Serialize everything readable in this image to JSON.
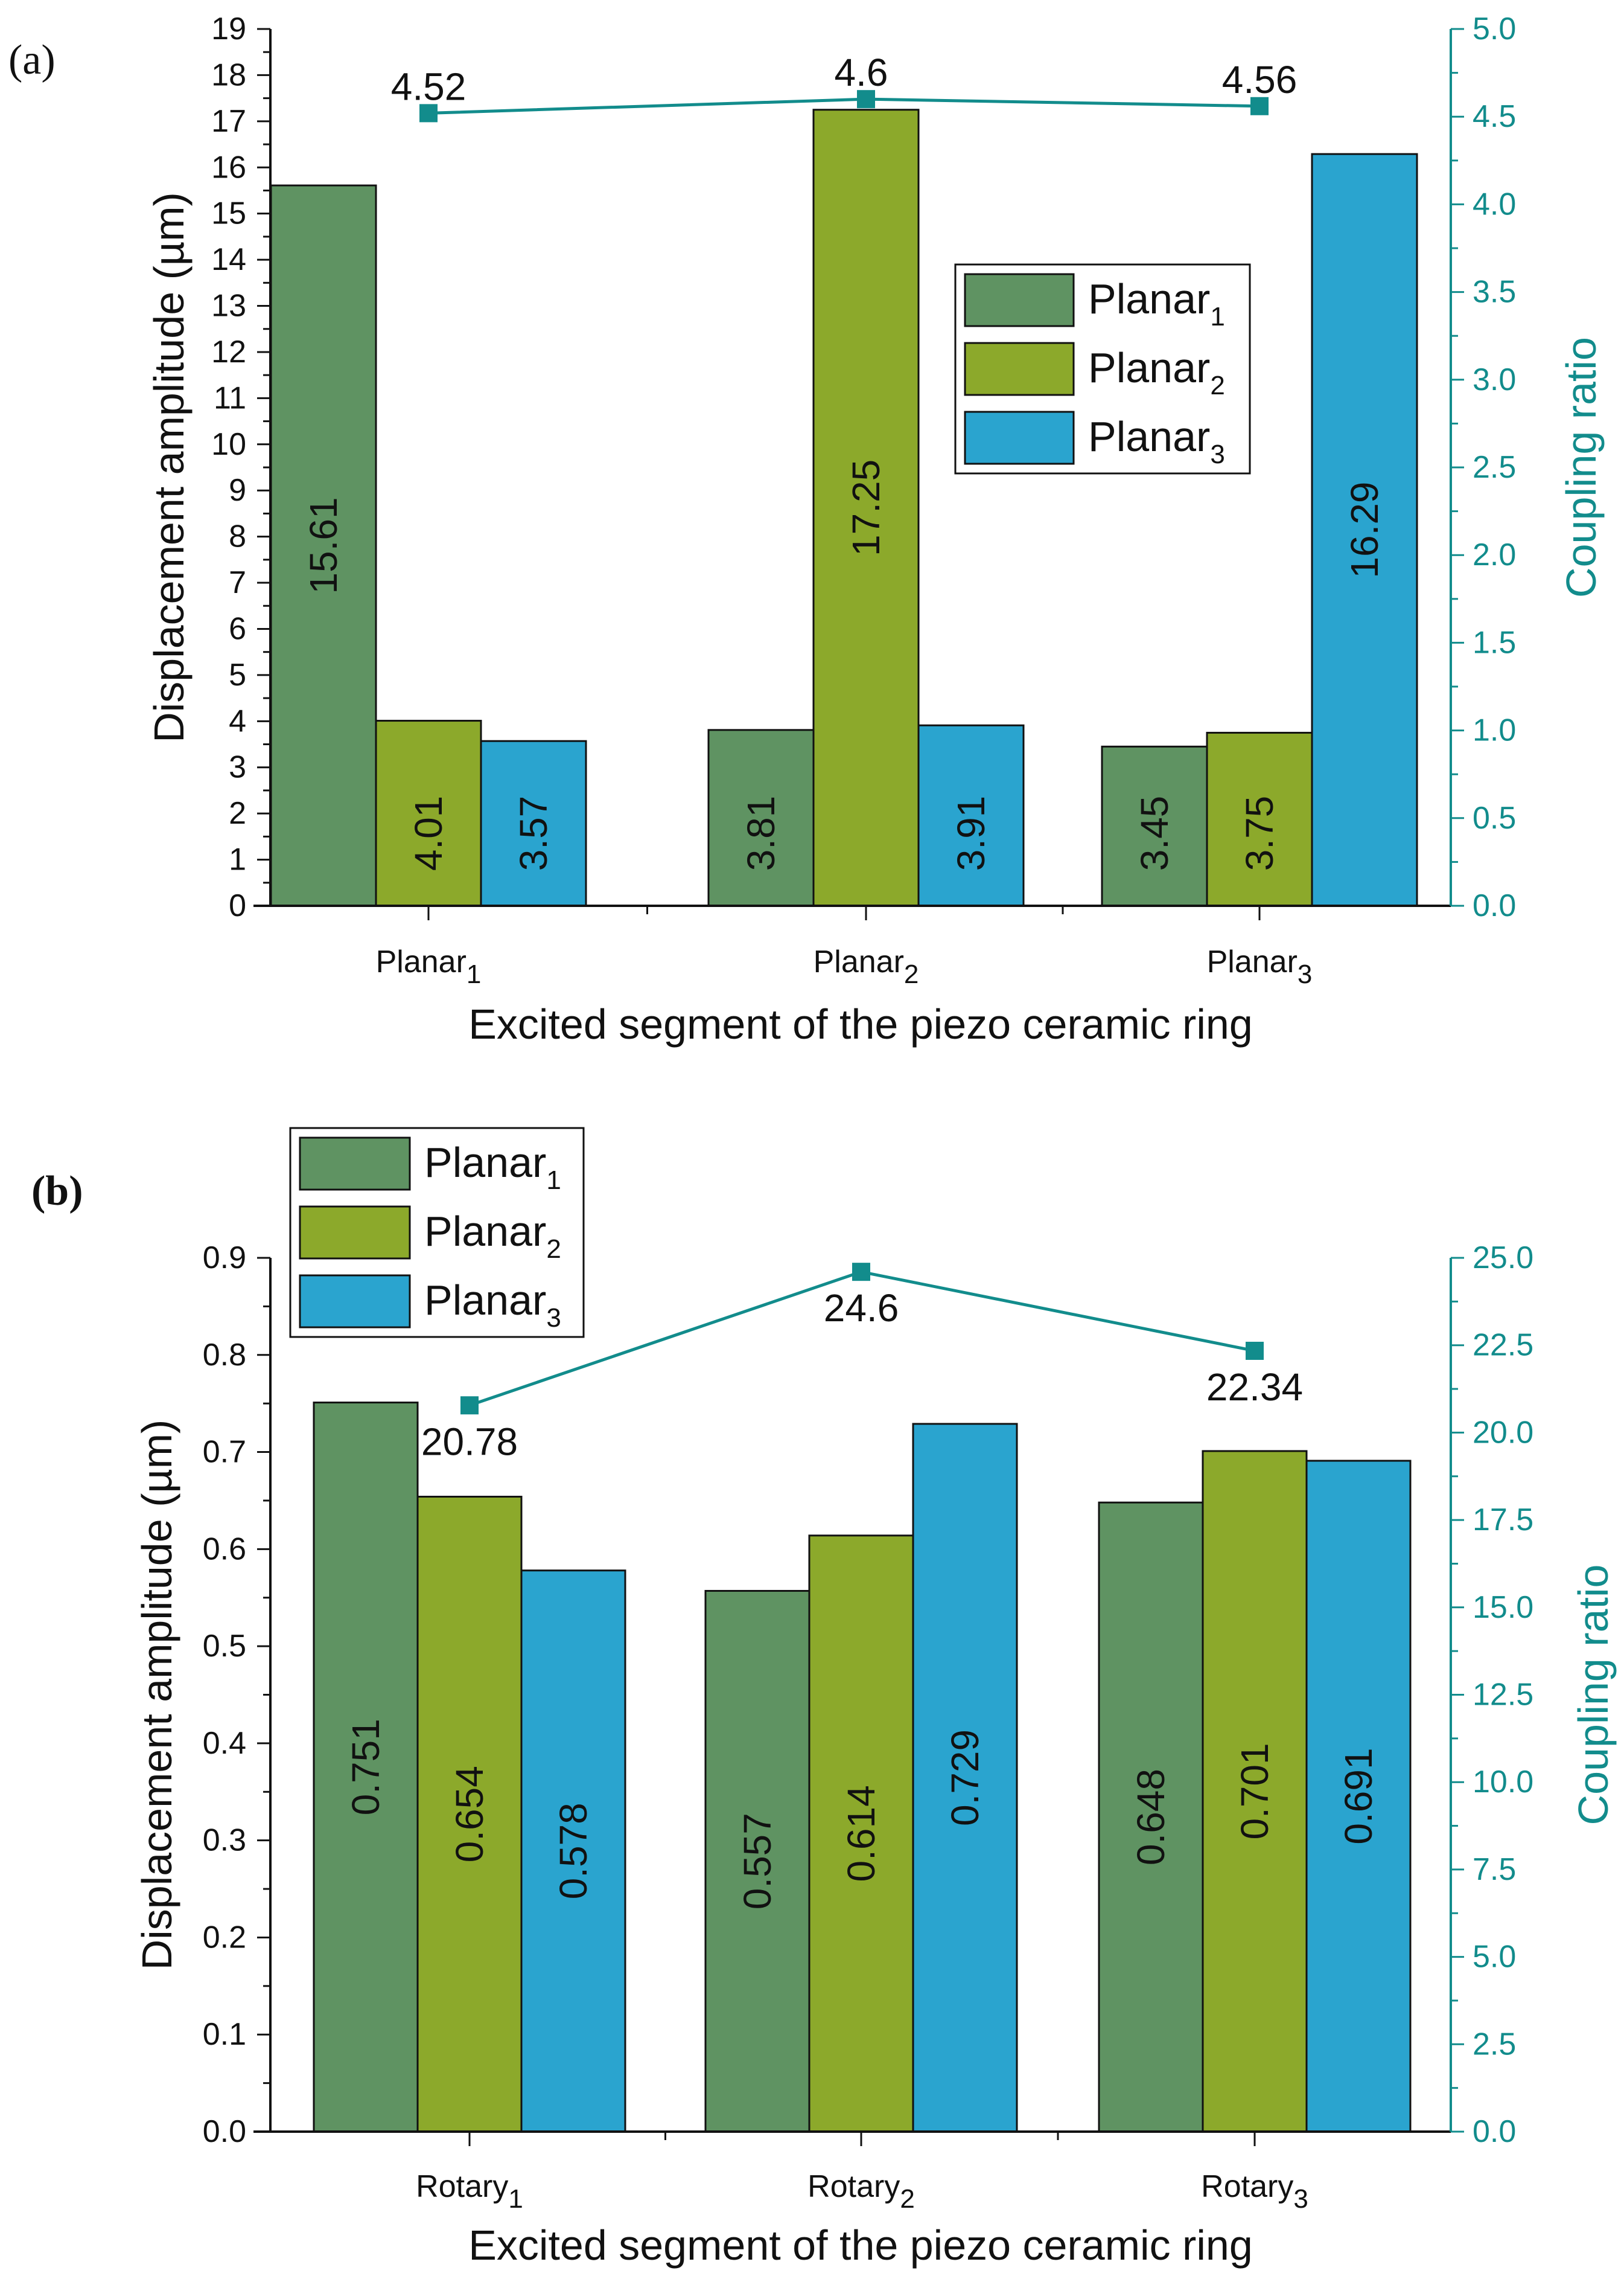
{
  "chart_data": [
    {
      "panel": "(a)",
      "type": "bar",
      "xlabel": "Excited segment of the piezo ceramic ring",
      "ylabel": "Displacement amplitude (µm)",
      "y2label": "Coupling ratio",
      "ylim": [
        0,
        19
      ],
      "yticks": [
        "0",
        "1",
        "2",
        "3",
        "4",
        "5",
        "6",
        "7",
        "8",
        "9",
        "10",
        "11",
        "12",
        "13",
        "14",
        "15",
        "16",
        "17",
        "18",
        "19"
      ],
      "y2lim": [
        0,
        5
      ],
      "y2ticks": [
        "0.0",
        "0.5",
        "1.0",
        "1.5",
        "2.0",
        "2.5",
        "3.0",
        "3.5",
        "4.0",
        "4.5",
        "5.0"
      ],
      "categories": [
        {
          "base": "Planar",
          "sub": "1"
        },
        {
          "base": "Planar",
          "sub": "2"
        },
        {
          "base": "Planar",
          "sub": "3"
        }
      ],
      "series": [
        {
          "name": "Planar",
          "sub": "1",
          "color": "#5f9362",
          "values": [
            15.61,
            3.81,
            3.45
          ],
          "labels": [
            "15.61",
            "3.81",
            "3.45"
          ]
        },
        {
          "name": "Planar",
          "sub": "2",
          "color": "#8ca92b",
          "values": [
            4.01,
            17.25,
            3.75
          ],
          "labels": [
            "4.01",
            "17.25",
            "3.75"
          ]
        },
        {
          "name": "Planar",
          "sub": "3",
          "color": "#2aa4cf",
          "values": [
            3.57,
            3.91,
            16.29
          ],
          "labels": [
            "3.57",
            "3.91",
            "16.29"
          ]
        }
      ],
      "line": {
        "name": "Coupling ratio",
        "color": "#128c8c",
        "values": [
          4.52,
          4.6,
          4.56
        ],
        "labels": [
          "4.52",
          "4.6",
          "4.56"
        ]
      },
      "legend_position": "center-right"
    },
    {
      "panel": "(b)",
      "type": "bar",
      "xlabel": "Excited segment of the piezo ceramic ring",
      "ylabel": "Displacement amplitude (µm)",
      "y2label": "Coupling ratio",
      "ylim": [
        0,
        0.9
      ],
      "yticks": [
        "0.0",
        "0.1",
        "0.2",
        "0.3",
        "0.4",
        "0.5",
        "0.6",
        "0.7",
        "0.8",
        "0.9"
      ],
      "y2lim": [
        0,
        25
      ],
      "y2ticks": [
        "0.0",
        "2.5",
        "5.0",
        "7.5",
        "10.0",
        "12.5",
        "15.0",
        "17.5",
        "20.0",
        "22.5",
        "25.0"
      ],
      "categories": [
        {
          "base": "Rotary",
          "sub": "1"
        },
        {
          "base": "Rotary",
          "sub": "2"
        },
        {
          "base": "Rotary",
          "sub": "3"
        }
      ],
      "series": [
        {
          "name": "Planar",
          "sub": "1",
          "color": "#5f9362",
          "values": [
            0.751,
            0.557,
            0.648
          ],
          "labels": [
            "0.751",
            "0.557",
            "0.648"
          ]
        },
        {
          "name": "Planar",
          "sub": "2",
          "color": "#8ca92b",
          "values": [
            0.654,
            0.614,
            0.701
          ],
          "labels": [
            "0.654",
            "0.614",
            "0.701"
          ]
        },
        {
          "name": "Planar",
          "sub": "3",
          "color": "#2aa4cf",
          "values": [
            0.578,
            0.729,
            0.691
          ],
          "labels": [
            "0.578",
            "0.729",
            "0.691"
          ]
        }
      ],
      "line": {
        "name": "Coupling ratio",
        "color": "#128c8c",
        "values": [
          20.78,
          24.6,
          22.34
        ],
        "labels": [
          "20.78",
          "24.6",
          "22.34"
        ]
      },
      "legend_position": "top-left"
    }
  ]
}
